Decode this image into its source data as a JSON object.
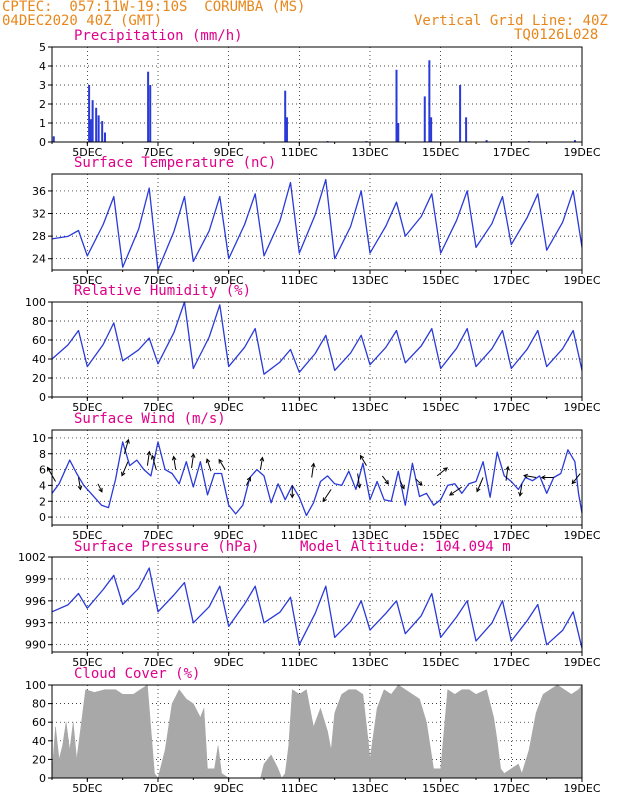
{
  "header": {
    "line1": "CPTEC:  057:11W-19:10S  CORUMBA (MS)",
    "line2": "04DEC2020 40Z (GMT)",
    "grid_note": "Vertical Grid Line: 40Z",
    "code": "TQ0126L028"
  },
  "colors": {
    "header": "#e8861a",
    "title": "#e0008a",
    "line": "#2a3ad8",
    "cloud": "#a8a8a8",
    "arrow": "#000000"
  },
  "x_axis": {
    "range_days": [
      4,
      19
    ],
    "tick_days": [
      5,
      7,
      9,
      11,
      13,
      15,
      17,
      19
    ],
    "tick_labels": [
      "5DEC",
      "7DEC",
      "9DEC",
      "11DEC",
      "13DEC",
      "15DEC",
      "17DEC",
      "19DEC"
    ]
  },
  "chart_data": [
    {
      "id": "precip",
      "type": "bar",
      "title": "Precipitation (mm/h)",
      "ylim": [
        0,
        5
      ],
      "yticks": [
        "0",
        "1",
        "2",
        "3",
        "4",
        "5"
      ],
      "bars": [
        {
          "x": 4.05,
          "y": 0.3
        },
        {
          "x": 5.05,
          "y": 3.0
        },
        {
          "x": 5.1,
          "y": 1.2
        },
        {
          "x": 5.15,
          "y": 2.2
        },
        {
          "x": 5.25,
          "y": 1.8
        },
        {
          "x": 5.32,
          "y": 1.4
        },
        {
          "x": 5.42,
          "y": 1.1
        },
        {
          "x": 5.5,
          "y": 0.5
        },
        {
          "x": 6.72,
          "y": 3.7
        },
        {
          "x": 6.78,
          "y": 3.0
        },
        {
          "x": 10.6,
          "y": 2.7
        },
        {
          "x": 10.65,
          "y": 1.3
        },
        {
          "x": 13.75,
          "y": 3.8
        },
        {
          "x": 13.8,
          "y": 1.0
        },
        {
          "x": 14.55,
          "y": 2.4
        },
        {
          "x": 14.68,
          "y": 4.3
        },
        {
          "x": 14.73,
          "y": 1.3
        },
        {
          "x": 15.55,
          "y": 3.0
        },
        {
          "x": 15.72,
          "y": 1.3
        },
        {
          "x": 11.8,
          "y": 0.05
        },
        {
          "x": 12.9,
          "y": 0.05
        },
        {
          "x": 16.3,
          "y": 0.1
        },
        {
          "x": 17.5,
          "y": 0.05
        },
        {
          "x": 18.8,
          "y": 0.1
        }
      ]
    },
    {
      "id": "temp",
      "type": "line",
      "title": "Surface Temperature (nC)",
      "ylim": [
        22,
        39
      ],
      "yticks": [
        "24",
        "28",
        "32",
        "36"
      ],
      "diurnal": {
        "days": [
          4,
          5,
          6,
          7,
          8,
          9,
          10,
          11,
          12,
          13,
          14,
          15,
          16,
          17,
          18,
          19
        ],
        "min": [
          27.5,
          24.5,
          22.5,
          22.0,
          23.5,
          24.0,
          24.5,
          25.0,
          24.0,
          25.0,
          28.0,
          25.0,
          26.0,
          26.5,
          25.5,
          26.0
        ],
        "max": [
          29.0,
          35.0,
          36.5,
          35.0,
          35.0,
          35.5,
          37.5,
          38.0,
          36.0,
          34.0,
          35.5,
          36.0,
          35.0,
          35.5,
          36.0,
          37.5
        ]
      }
    },
    {
      "id": "rh",
      "type": "line",
      "title": "Relative Humidity (%)",
      "ylim": [
        0,
        100
      ],
      "yticks": [
        "0",
        "20",
        "40",
        "60",
        "80",
        "100"
      ],
      "diurnal": {
        "days": [
          4,
          5,
          6,
          7,
          8,
          9,
          10,
          11,
          12,
          13,
          14,
          15,
          16,
          17,
          18,
          19
        ],
        "min": [
          40,
          32,
          38,
          35,
          30,
          32,
          24,
          26,
          28,
          34,
          36,
          30,
          32,
          30,
          32,
          28
        ],
        "max": [
          70,
          78,
          62,
          100,
          97,
          72,
          50,
          65,
          65,
          70,
          72,
          72,
          70,
          70,
          70,
          72
        ]
      }
    },
    {
      "id": "wind",
      "type": "line",
      "title": "Surface Wind (m/s)",
      "ylim": [
        -1,
        11
      ],
      "yticks": [
        "0",
        "2",
        "4",
        "6",
        "8",
        "10"
      ],
      "points": [
        [
          4.0,
          3.0
        ],
        [
          4.2,
          4.2
        ],
        [
          4.5,
          7.2
        ],
        [
          4.7,
          5.5
        ],
        [
          4.9,
          4.0
        ],
        [
          5.1,
          3.0
        ],
        [
          5.4,
          1.5
        ],
        [
          5.6,
          1.2
        ],
        [
          5.8,
          4.8
        ],
        [
          6.0,
          9.5
        ],
        [
          6.2,
          6.5
        ],
        [
          6.4,
          7.2
        ],
        [
          6.6,
          6.0
        ],
        [
          6.8,
          5.2
        ],
        [
          7.0,
          9.5
        ],
        [
          7.2,
          6.0
        ],
        [
          7.4,
          5.5
        ],
        [
          7.6,
          4.2
        ],
        [
          7.8,
          7.0
        ],
        [
          8.0,
          3.8
        ],
        [
          8.2,
          7.0
        ],
        [
          8.4,
          2.8
        ],
        [
          8.6,
          5.5
        ],
        [
          8.8,
          5.5
        ],
        [
          9.0,
          1.5
        ],
        [
          9.2,
          0.4
        ],
        [
          9.4,
          1.5
        ],
        [
          9.6,
          5.0
        ],
        [
          9.8,
          6.0
        ],
        [
          10.0,
          5.2
        ],
        [
          10.2,
          1.8
        ],
        [
          10.4,
          4.2
        ],
        [
          10.6,
          2.2
        ],
        [
          10.8,
          4.0
        ],
        [
          11.0,
          2.5
        ],
        [
          11.2,
          0.2
        ],
        [
          11.4,
          1.8
        ],
        [
          11.6,
          4.5
        ],
        [
          11.8,
          5.2
        ],
        [
          12.0,
          4.2
        ],
        [
          12.2,
          4.0
        ],
        [
          12.4,
          5.8
        ],
        [
          12.6,
          3.5
        ],
        [
          12.8,
          6.8
        ],
        [
          13.0,
          2.2
        ],
        [
          13.2,
          4.5
        ],
        [
          13.4,
          2.2
        ],
        [
          13.6,
          2.0
        ],
        [
          13.8,
          5.8
        ],
        [
          14.0,
          1.5
        ],
        [
          14.2,
          6.8
        ],
        [
          14.4,
          2.6
        ],
        [
          14.6,
          3.0
        ],
        [
          14.8,
          1.5
        ],
        [
          15.0,
          2.2
        ],
        [
          15.2,
          4.0
        ],
        [
          15.4,
          4.2
        ],
        [
          15.6,
          3.0
        ],
        [
          15.8,
          4.2
        ],
        [
          16.0,
          4.5
        ],
        [
          16.2,
          7.0
        ],
        [
          16.4,
          2.5
        ],
        [
          16.6,
          8.2
        ],
        [
          16.8,
          5.2
        ],
        [
          17.0,
          4.5
        ],
        [
          17.2,
          3.5
        ],
        [
          17.4,
          5.0
        ],
        [
          17.6,
          4.6
        ],
        [
          17.8,
          5.2
        ],
        [
          18.0,
          3.0
        ],
        [
          18.2,
          5.0
        ],
        [
          18.4,
          5.5
        ],
        [
          18.6,
          8.5
        ],
        [
          18.8,
          7.0
        ],
        [
          18.9,
          3.0
        ],
        [
          19.0,
          0.5
        ]
      ],
      "arrows": [
        {
          "x": 4.1,
          "y": 4.5,
          "dx": -8,
          "dy": -14
        },
        {
          "x": 4.75,
          "y": 5.0,
          "dx": 2,
          "dy": 12
        },
        {
          "x": 5.3,
          "y": 4.2,
          "dx": 4,
          "dy": 8
        },
        {
          "x": 6.05,
          "y": 8.0,
          "dx": 4,
          "dy": -14
        },
        {
          "x": 6.15,
          "y": 7.0,
          "dx": -6,
          "dy": 14
        },
        {
          "x": 6.7,
          "y": 6.5,
          "dx": 2,
          "dy": -14
        },
        {
          "x": 6.95,
          "y": 6.0,
          "dx": -4,
          "dy": -14
        },
        {
          "x": 7.5,
          "y": 6.0,
          "dx": -2,
          "dy": -13
        },
        {
          "x": 7.95,
          "y": 6.2,
          "dx": 2,
          "dy": -14
        },
        {
          "x": 8.5,
          "y": 5.8,
          "dx": -4,
          "dy": -12
        },
        {
          "x": 8.9,
          "y": 6.0,
          "dx": -6,
          "dy": -10
        },
        {
          "x": 9.5,
          "y": 4.0,
          "dx": 4,
          "dy": -8
        },
        {
          "x": 9.9,
          "y": 6.0,
          "dx": 2,
          "dy": -12
        },
        {
          "x": 10.8,
          "y": 4.0,
          "dx": 0,
          "dy": 12
        },
        {
          "x": 11.35,
          "y": 5.0,
          "dx": 2,
          "dy": -14
        },
        {
          "x": 11.9,
          "y": 3.5,
          "dx": -8,
          "dy": 12
        },
        {
          "x": 12.65,
          "y": 5.5,
          "dx": 2,
          "dy": 14
        },
        {
          "x": 12.9,
          "y": 6.5,
          "dx": -6,
          "dy": -10
        },
        {
          "x": 13.35,
          "y": 5.2,
          "dx": 6,
          "dy": 8
        },
        {
          "x": 13.85,
          "y": 4.6,
          "dx": 4,
          "dy": 8
        },
        {
          "x": 14.3,
          "y": 4.8,
          "dx": 6,
          "dy": 6
        },
        {
          "x": 14.9,
          "y": 5.2,
          "dx": 10,
          "dy": -8
        },
        {
          "x": 15.6,
          "y": 3.8,
          "dx": -12,
          "dy": 8
        },
        {
          "x": 16.2,
          "y": 5.0,
          "dx": -6,
          "dy": 14
        },
        {
          "x": 16.85,
          "y": 4.6,
          "dx": 2,
          "dy": -14
        },
        {
          "x": 17.3,
          "y": 4.2,
          "dx": -2,
          "dy": 12
        },
        {
          "x": 17.7,
          "y": 5.0,
          "dx": -12,
          "dy": -2
        },
        {
          "x": 18.2,
          "y": 5.0,
          "dx": -12,
          "dy": 0
        },
        {
          "x": 18.95,
          "y": 5.5,
          "dx": -8,
          "dy": 10
        }
      ]
    },
    {
      "id": "pres",
      "type": "line",
      "title": "Surface Pressure (hPa)",
      "annotation": "Model Altitude: 104.094 m",
      "ylim": [
        989,
        1002
      ],
      "yticks": [
        "990",
        "993",
        "996",
        "999",
        "1002"
      ],
      "diurnal": {
        "days": [
          4,
          5,
          6,
          7,
          8,
          9,
          10,
          11,
          12,
          13,
          14,
          15,
          16,
          17,
          18,
          19
        ],
        "min": [
          994.5,
          995,
          995.5,
          994.5,
          993,
          992.5,
          993,
          990,
          991,
          992,
          991.5,
          991,
          990.5,
          990.5,
          990,
          989.5
        ],
        "max": [
          997,
          999.5,
          1000.5,
          998.5,
          998,
          998,
          996.5,
          998,
          996,
          996,
          997,
          996,
          996,
          995.5,
          994.5,
          992
        ]
      }
    },
    {
      "id": "cloud",
      "type": "area",
      "title": "Cloud Cover (%)",
      "ylim": [
        0,
        100
      ],
      "yticks": [
        "0",
        "20",
        "40",
        "60",
        "80",
        "100"
      ],
      "points": [
        [
          4.0,
          5
        ],
        [
          4.1,
          55
        ],
        [
          4.2,
          20
        ],
        [
          4.3,
          35
        ],
        [
          4.4,
          60
        ],
        [
          4.5,
          30
        ],
        [
          4.6,
          60
        ],
        [
          4.7,
          20
        ],
        [
          4.8,
          50
        ],
        [
          4.95,
          95
        ],
        [
          5.2,
          92
        ],
        [
          5.5,
          95
        ],
        [
          5.8,
          95
        ],
        [
          6.0,
          90
        ],
        [
          6.3,
          90
        ],
        [
          6.5,
          95
        ],
        [
          6.7,
          100
        ],
        [
          6.9,
          5
        ],
        [
          7.0,
          0
        ],
        [
          7.2,
          30
        ],
        [
          7.4,
          80
        ],
        [
          7.6,
          95
        ],
        [
          7.8,
          85
        ],
        [
          8.0,
          80
        ],
        [
          8.2,
          65
        ],
        [
          8.3,
          75
        ],
        [
          8.4,
          10
        ],
        [
          8.6,
          10
        ],
        [
          8.7,
          35
        ],
        [
          8.8,
          5
        ],
        [
          9.0,
          0
        ],
        [
          9.5,
          0
        ],
        [
          9.9,
          0
        ],
        [
          10.0,
          15
        ],
        [
          10.2,
          25
        ],
        [
          10.4,
          10
        ],
        [
          10.5,
          0
        ],
        [
          10.6,
          5
        ],
        [
          10.7,
          35
        ],
        [
          10.8,
          95
        ],
        [
          11.0,
          90
        ],
        [
          11.2,
          95
        ],
        [
          11.4,
          55
        ],
        [
          11.6,
          75
        ],
        [
          11.8,
          50
        ],
        [
          11.9,
          30
        ],
        [
          12.0,
          70
        ],
        [
          12.2,
          90
        ],
        [
          12.4,
          95
        ],
        [
          12.6,
          95
        ],
        [
          12.8,
          90
        ],
        [
          12.95,
          40
        ],
        [
          13.0,
          20
        ],
        [
          13.2,
          75
        ],
        [
          13.4,
          95
        ],
        [
          13.6,
          90
        ],
        [
          13.8,
          100
        ],
        [
          14.0,
          95
        ],
        [
          14.2,
          90
        ],
        [
          14.4,
          85
        ],
        [
          14.6,
          60
        ],
        [
          14.8,
          10
        ],
        [
          15.0,
          10
        ],
        [
          15.2,
          95
        ],
        [
          15.4,
          90
        ],
        [
          15.6,
          95
        ],
        [
          15.8,
          95
        ],
        [
          16.0,
          90
        ],
        [
          16.3,
          95
        ],
        [
          16.5,
          65
        ],
        [
          16.6,
          40
        ],
        [
          16.7,
          10
        ],
        [
          16.8,
          5
        ],
        [
          17.0,
          10
        ],
        [
          17.2,
          15
        ],
        [
          17.3,
          5
        ],
        [
          17.5,
          30
        ],
        [
          17.7,
          70
        ],
        [
          17.9,
          90
        ],
        [
          18.1,
          95
        ],
        [
          18.3,
          100
        ],
        [
          18.5,
          95
        ],
        [
          18.7,
          90
        ],
        [
          18.9,
          95
        ],
        [
          19.0,
          100
        ]
      ]
    }
  ]
}
